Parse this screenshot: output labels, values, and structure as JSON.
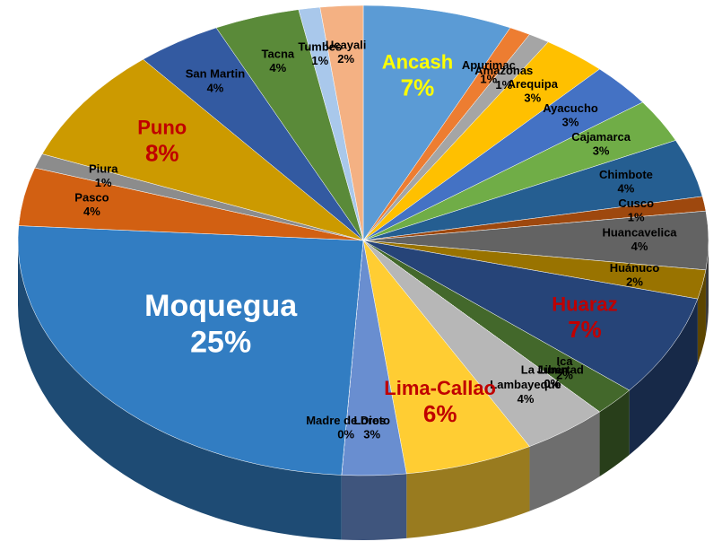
{
  "chart_data": {
    "type": "pie",
    "categories": [
      "Ancash",
      "Apurimac",
      "Amazonas",
      "Arequipa",
      "Ayacucho",
      "Cajamarca",
      "Chimbote",
      "Cusco",
      "Huancavelica",
      "Huánuco",
      "Huaraz",
      "Ica",
      "Junin",
      "La Libertad",
      "Lambayeque",
      "Lima-Callao",
      "Loreto",
      "Madre de Dios",
      "Moquegua",
      "Pasco",
      "Piura",
      "Puno",
      "San Martin",
      "Tacna",
      "Tumbes",
      "Ucayali"
    ],
    "values": [
      7,
      1,
      1,
      3,
      3,
      3,
      4,
      1,
      4,
      2,
      7,
      2,
      0,
      0,
      4,
      6,
      3,
      0,
      25,
      4,
      1,
      8,
      4,
      4,
      1,
      2
    ],
    "value_labels": [
      "7%",
      "1%",
      "1%",
      "3%",
      "3%",
      "3%",
      "4%",
      "1%",
      "4%",
      "2%",
      "7%",
      "2%",
      "0%",
      "0%",
      "4%",
      "6%",
      "3%",
      "0%",
      "25%",
      "4%",
      "1%",
      "8%",
      "4%",
      "4%",
      "1%",
      "2%"
    ],
    "colors": [
      "#5b9bd5",
      "#ed7d31",
      "#a5a5a5",
      "#ffc000",
      "#4472c4",
      "#70ad47",
      "#255e91",
      "#9e480e",
      "#636363",
      "#997300",
      "#264478",
      "#43682b",
      "#7cafdd",
      "#f1975a",
      "#b7b7b7",
      "#ffcd33",
      "#698ed0",
      "#8cc168",
      "#327dc2",
      "#d26012",
      "#8c8c8c",
      "#cc9a00",
      "#335aa1",
      "#5a8a39",
      "#a9c8eb",
      "#f4b183"
    ],
    "label_colors": [
      "#ffff00",
      "#000000",
      "#000000",
      "#000000",
      "#000000",
      "#000000",
      "#000000",
      "#000000",
      "#000000",
      "#000000",
      "#c00000",
      "#000000",
      "#000000",
      "#000000",
      "#000000",
      "#c00000",
      "#000000",
      "#000000",
      "#ffffff",
      "#000000",
      "#000000",
      "#c00000",
      "#000000",
      "#000000",
      "#000000",
      "#000000"
    ]
  }
}
